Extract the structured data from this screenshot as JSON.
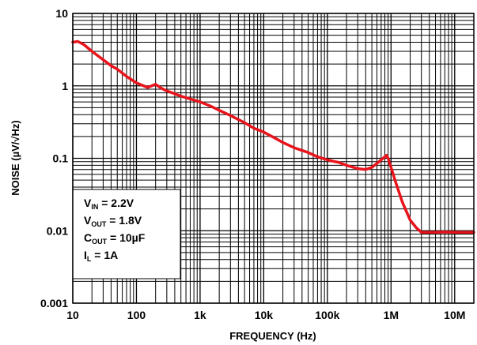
{
  "chart_data": {
    "type": "line",
    "title": "",
    "xlabel": "FREQUENCY (Hz)",
    "ylabel": "NOISE (µV/√Hz)",
    "x_scale": "log",
    "y_scale": "log",
    "xlim": [
      10,
      20000000
    ],
    "ylim": [
      0.001,
      10
    ],
    "x_tick_labels": [
      {
        "value": 10,
        "label": "10"
      },
      {
        "value": 100,
        "label": "100"
      },
      {
        "value": 1000,
        "label": "1k"
      },
      {
        "value": 10000,
        "label": "10k"
      },
      {
        "value": 100000,
        "label": "100k"
      },
      {
        "value": 1000000,
        "label": "1M"
      },
      {
        "value": 10000000,
        "label": "10M"
      }
    ],
    "y_tick_labels": [
      {
        "value": 10,
        "label": "10"
      },
      {
        "value": 1,
        "label": "1"
      },
      {
        "value": 0.1,
        "label": "0.1"
      },
      {
        "value": 0.01,
        "label": "0.01"
      },
      {
        "value": 0.001,
        "label": "0.001"
      }
    ],
    "grid": true,
    "legend_position": "bottom-left",
    "conditions": [
      {
        "main": "V",
        "sub": "IN",
        "rest": " = 2.2V"
      },
      {
        "main": "V",
        "sub": "OUT",
        "rest": " = 1.8V"
      },
      {
        "main": "C",
        "sub": "OUT",
        "rest": " = 10µF"
      },
      {
        "main": "I",
        "sub": "L",
        "rest": " = 1A"
      }
    ],
    "series": [
      {
        "color": "#e8141c",
        "x": [
          10,
          12,
          15,
          20,
          30,
          40,
          50,
          70,
          100,
          150,
          200,
          250,
          300,
          400,
          500,
          700,
          1000,
          1500,
          2000,
          3000,
          5000,
          7000,
          10000,
          15000,
          20000,
          30000,
          50000,
          70000,
          100000,
          130000,
          150000,
          200000,
          300000,
          400000,
          500000,
          600000,
          700000,
          800000,
          850000,
          900000,
          1000000,
          1200000,
          1500000,
          2000000,
          2500000,
          3000000,
          4000000,
          5000000,
          7000000,
          10000000,
          20000000
        ],
        "y": [
          4.0,
          4.1,
          3.7,
          3.0,
          2.3,
          1.9,
          1.7,
          1.35,
          1.1,
          0.95,
          1.05,
          0.92,
          0.85,
          0.78,
          0.72,
          0.66,
          0.6,
          0.52,
          0.46,
          0.39,
          0.31,
          0.26,
          0.23,
          0.19,
          0.165,
          0.14,
          0.12,
          0.105,
          0.095,
          0.09,
          0.088,
          0.08,
          0.072,
          0.07,
          0.075,
          0.085,
          0.095,
          0.105,
          0.11,
          0.1,
          0.075,
          0.045,
          0.025,
          0.014,
          0.011,
          0.0095,
          0.0095,
          0.0095,
          0.0096,
          0.0095,
          0.0095
        ]
      }
    ]
  }
}
